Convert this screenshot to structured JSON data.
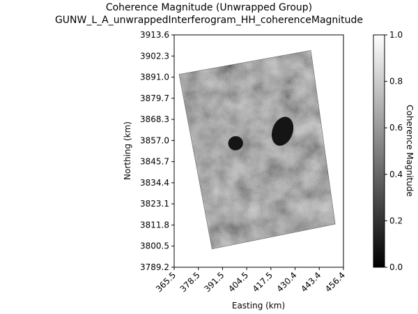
{
  "chart_data": {
    "type": "heatmap",
    "title": "Coherence Magnitude (Unwrapped Group)",
    "subtitle": "GUNW_L_A_unwrappedInterferogram_HH_coherenceMagnitude",
    "xlabel": "Easting (km)",
    "ylabel": "Northing (km)",
    "x_ticks": [
      "365.5",
      "378.5",
      "391.5",
      "404.5",
      "417.5",
      "430.4",
      "443.4",
      "456.4"
    ],
    "y_ticks": [
      "3913.6",
      "3902.3",
      "3891.0",
      "3879.7",
      "3868.3",
      "3857.0",
      "3845.7",
      "3834.4",
      "3823.1",
      "3811.8",
      "3800.5",
      "3789.2"
    ],
    "xlim": [
      365.5,
      456.4
    ],
    "ylim": [
      3789.2,
      3913.6
    ],
    "colorbar": {
      "label": "Coherence Magnitude",
      "ticks": [
        "0.0",
        "0.2",
        "0.4",
        "0.6",
        "0.8",
        "1.0"
      ],
      "range": [
        0.0,
        1.0
      ],
      "colormap": "grayscale"
    },
    "footprint_corners_km": [
      {
        "easting": 368.1,
        "northing": 3892.5
      },
      {
        "easting": 438.9,
        "northing": 3905.3
      },
      {
        "easting": 452.0,
        "northing": 3812.3
      },
      {
        "easting": 385.8,
        "northing": 3799.0
      }
    ],
    "dark_features_km": [
      {
        "easting": 423.7,
        "northing": 3862.0,
        "r_e": 5.5,
        "r_n": 8.0,
        "rotate": 20
      },
      {
        "easting": 398.5,
        "northing": 3855.6,
        "r_e": 4.0,
        "r_n": 3.8,
        "rotate": -10
      }
    ],
    "grid": false
  }
}
